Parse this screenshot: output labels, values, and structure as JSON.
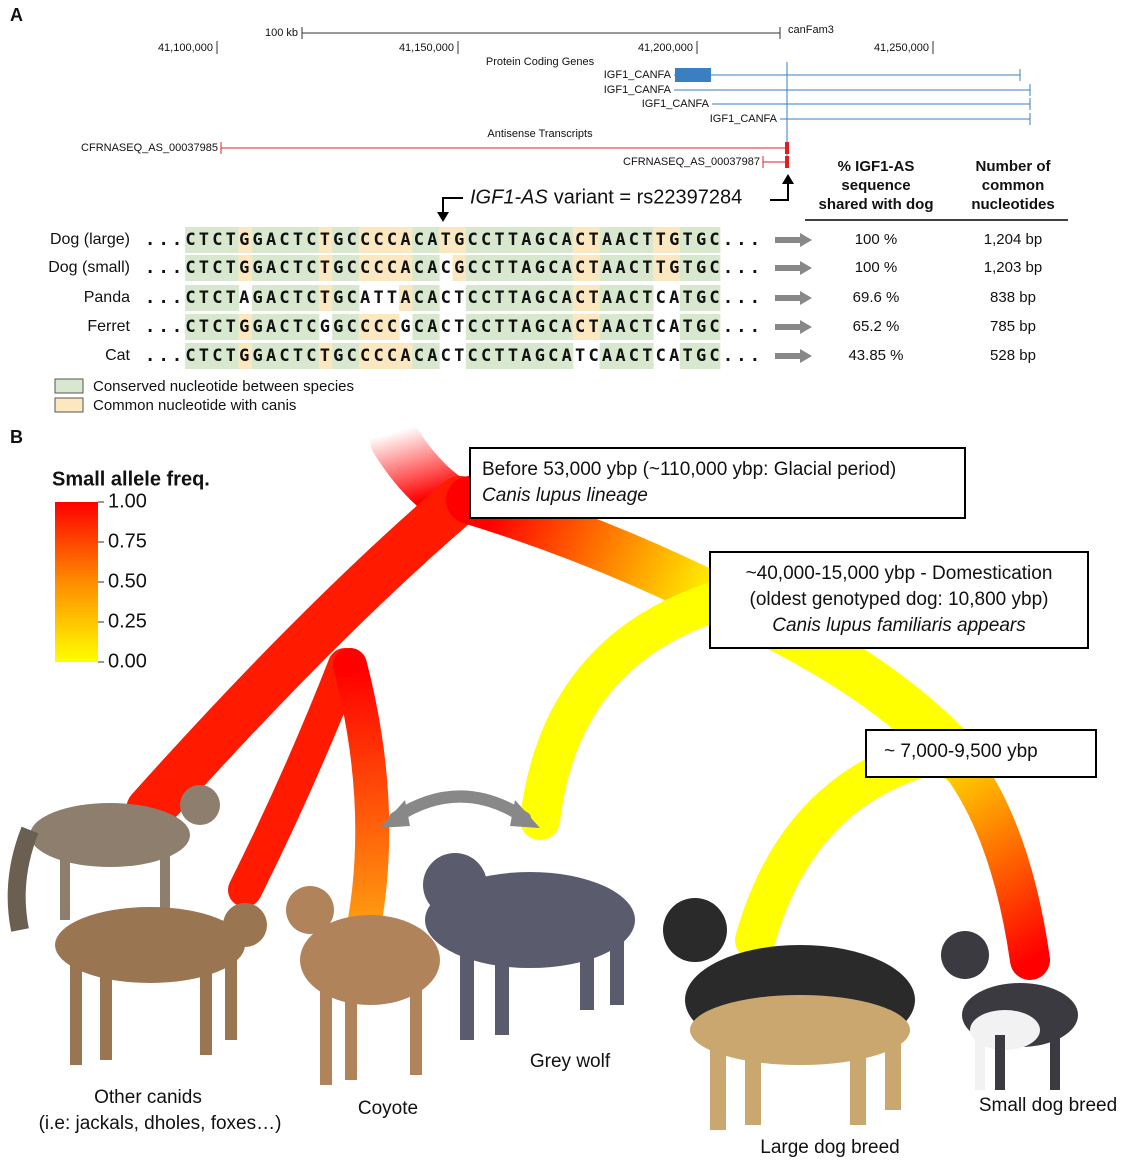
{
  "panel_a": {
    "label": "A",
    "browser": {
      "scale": "100 kb",
      "assembly": "canFam3",
      "coordinates": [
        "41,100,000",
        "41,150,000",
        "41,200,000",
        "41,250,000"
      ],
      "genes_title": "Protein Coding Genes",
      "genes": [
        "IGF1_CANFA",
        "IGF1_CANFA",
        "IGF1_CANFA",
        "IGF1_CANFA"
      ],
      "antisense_title": "Antisense Transcripts",
      "transcripts": [
        "CFRNASEQ_AS_00037985",
        "CFRNASEQ_AS_00037987"
      ]
    },
    "variant_gene": "IGF1-AS",
    "variant_text": "variant = rs22397284",
    "headers": {
      "shared": [
        "% IGF1-AS",
        "sequence",
        "shared with dog"
      ],
      "common": [
        "Number of",
        "common",
        "nucleotides"
      ]
    },
    "rows": [
      {
        "species": "Dog (large)",
        "sequence": "...CTCTGGACTCTGCCCCACATGCCTTAGCACTAACTTGTGC...",
        "shared": "100 %",
        "common": "1,204 bp"
      },
      {
        "species": "Dog (small)",
        "sequence": "...CTCTGGACTCTGCCCCACACGCCTTAGCACTAACTTGTGC...",
        "shared": "100 %",
        "common": "1,203 bp"
      },
      {
        "species": "Panda",
        "sequence": "...CTCTAGACTCTGCATTACACTCCTTAGCACTAACTCATGC...",
        "shared": "69.6 %",
        "common": "838 bp"
      },
      {
        "species": "Ferret",
        "sequence": "...CTCTGGACTCGGCCCCGCACTCCTTAGCACTAACTCATGC...",
        "shared": "65.2 %",
        "common": "785 bp"
      },
      {
        "species": "Cat",
        "sequence": "...CTCTGGACTCTGCCCCACACTCCTTAGCATCAACTCATGC...",
        "shared": "43.85 %",
        "common": "528 bp"
      }
    ],
    "legend": [
      "Conserved nucleotide between species",
      "Common nucleotide with canis"
    ]
  },
  "panel_b": {
    "label": "B",
    "colorbar": {
      "title": "Small allele freq.",
      "ticks": [
        {
          "value": 1,
          "label": "1.00"
        },
        {
          "value": 0.75,
          "label": "0.75"
        },
        {
          "value": 0.5,
          "label": "0.50"
        },
        {
          "value": 0.25,
          "label": "0.25"
        },
        {
          "value": 0,
          "label": "0.00"
        }
      ],
      "lim": [
        0,
        1
      ]
    },
    "boxes": [
      [
        "Before 53,000 ybp (~110,000 ybp: Glacial period)",
        "Canis lupus lineage"
      ],
      [
        "~40,000-15,000 ybp - Domestication",
        "(oldest genotyped dog: 10,800 ybp)",
        "Canis lupus familiaris appears"
      ],
      [
        "~ 7,000-9,500 ybp"
      ]
    ],
    "animals": [
      "Other canids",
      "(i.e: jackals, dholes, foxes…)",
      "Coyote",
      "Grey wolf",
      "Large dog breed",
      "Small dog breed"
    ]
  }
}
